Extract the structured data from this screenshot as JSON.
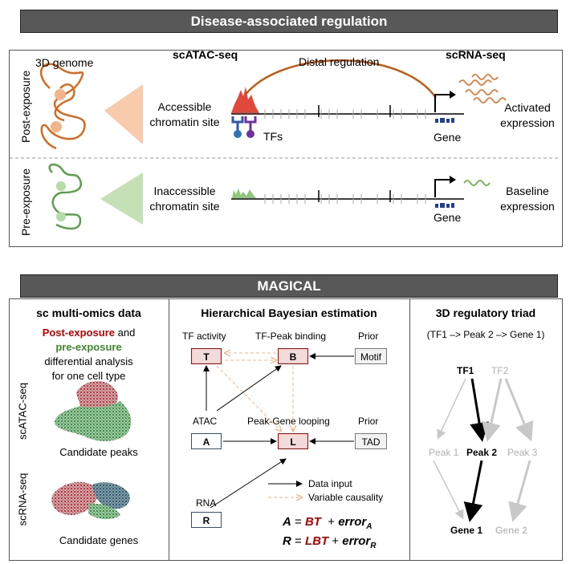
{
  "top": {
    "banner": "Disease-associated regulation",
    "genome_label": "3D genome",
    "scatac_header": "scATAC-seq",
    "scrna_header": "scRNA-seq",
    "distal_label": "Distal regulation",
    "post_label": "Post-exposure",
    "pre_label": "Pre-exposure",
    "accessible_l1": "Accessible",
    "accessible_l2": "chromatin site",
    "inaccessible_l1": "Inaccessible",
    "inaccessible_l2": "chromatin site",
    "tfs_label": "TFs",
    "gene_label_post": "Gene",
    "gene_label_pre": "Gene",
    "activated_l1": "Activated",
    "activated_l2": "expression",
    "baseline_l1": "Baseline",
    "baseline_l2": "expression"
  },
  "bottom": {
    "banner": "MAGICAL",
    "left": {
      "title": "sc multi-omics data",
      "post": "Post-exposure",
      "and": " and",
      "pre": "pre-exposure",
      "line3": "differential analysis",
      "line4": "for one cell type",
      "atac_side": "scATAC-seq",
      "rna_side": "scRNA-seq",
      "peaks": "Candidate peaks",
      "genes": "Candidate genes"
    },
    "middle": {
      "title": "Hierarchical Bayesian estimation",
      "tf_activity": "TF activity",
      "tf_peak": "TF-Peak binding",
      "prior1": "Prior",
      "atac": "ATAC",
      "peak_gene": "Peak-Gene looping",
      "prior2": "Prior",
      "rna": "RNA",
      "box_t": "T",
      "box_b": "B",
      "box_motif": "Motif",
      "box_a": "A",
      "box_l": "L",
      "box_tad": "TAD",
      "box_r": "R",
      "legend_data": "Data input",
      "legend_var": "Variable causality",
      "eq1_lhs": "A",
      "eq1_eq": " = ",
      "eq1_red": "BT",
      "eq1_plus": "  + ",
      "eq1_err": "error",
      "eq1_sub": "A",
      "eq2_lhs": "R",
      "eq2_eq": " = ",
      "eq2_red": "LBT",
      "eq2_plus": " + ",
      "eq2_err": "error",
      "eq2_sub": "R"
    },
    "right": {
      "title": "3D regulatory triad",
      "subtitle": "(TF1 –> Peak 2 –> Gene 1)",
      "tf1": "TF1",
      "tf2": "TF2",
      "peak1": "Peak 1",
      "peak2": "Peak 2",
      "peak3": "Peak 3",
      "gene1": "Gene 1",
      "gene2": "Gene 2"
    }
  },
  "colors": {
    "banner_bg": "#585858",
    "red": "#c00000",
    "green": "#3a8a2a",
    "orange": "#c55a11",
    "dash": "#f4b183",
    "grey_text": "#b0b0b0",
    "blue": "#2f4f8f"
  }
}
